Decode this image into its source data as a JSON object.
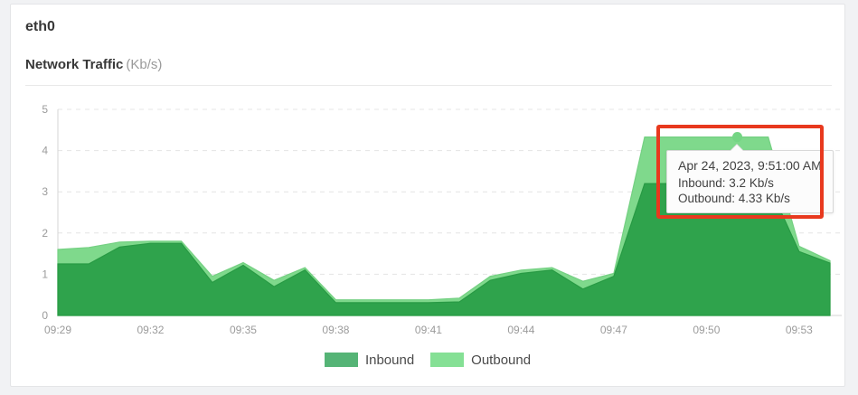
{
  "header": {
    "device": "eth0",
    "title": "Network Traffic",
    "unit": "(Kb/s)"
  },
  "chart_data": {
    "type": "area",
    "title": "Network Traffic",
    "xlabel": "",
    "ylabel": "Kb/s",
    "ylim": [
      0,
      5
    ],
    "y_ticks": [
      0,
      1,
      2,
      3,
      4,
      5
    ],
    "grid": "horizontal-dashed",
    "legend_position": "bottom",
    "x": [
      "09:29",
      "09:30",
      "09:31",
      "09:32",
      "09:33",
      "09:34",
      "09:35",
      "09:36",
      "09:37",
      "09:38",
      "09:39",
      "09:40",
      "09:41",
      "09:42",
      "09:43",
      "09:44",
      "09:45",
      "09:46",
      "09:47",
      "09:48",
      "09:49",
      "09:50",
      "09:51",
      "09:52",
      "09:53",
      "09:54"
    ],
    "x_tick_labels": [
      "09:29",
      "09:32",
      "09:35",
      "09:38",
      "09:41",
      "09:44",
      "09:47",
      "09:50",
      "09:53"
    ],
    "series": [
      {
        "name": "Inbound",
        "color": "#2fa34c",
        "edge_color": "#289a44",
        "legend_color": "#55b476",
        "values": [
          1.25,
          1.25,
          1.66,
          1.75,
          1.75,
          0.8,
          1.22,
          0.7,
          1.1,
          0.31,
          0.31,
          0.31,
          0.31,
          0.33,
          0.85,
          1.02,
          1.1,
          0.64,
          0.95,
          3.2,
          3.2,
          3.2,
          3.2,
          3.2,
          1.55,
          1.27
        ]
      },
      {
        "name": "Outbound",
        "color": "#7fd98c",
        "edge_color": "#74d082",
        "legend_color": "#85e095",
        "values": [
          1.6,
          1.65,
          1.78,
          1.8,
          1.8,
          0.95,
          1.28,
          0.85,
          1.16,
          0.38,
          0.38,
          0.38,
          0.38,
          0.42,
          0.95,
          1.1,
          1.16,
          0.83,
          1.02,
          4.33,
          4.33,
          4.33,
          4.33,
          4.33,
          1.68,
          1.33
        ]
      }
    ]
  },
  "tooltip": {
    "title": "Apr 24, 2023, 9:51:00 AM",
    "inbound_line": "Inbound: 3.2 Kb/s",
    "outbound_line": "Outbound: 4.33 Kb/s",
    "anchor_time": "09:51",
    "anchor_series": "Outbound",
    "anchor_value": 4.33
  },
  "annotation": {
    "type": "highlight-box",
    "color": "#e8391e"
  },
  "colors": {
    "page_bg": "#f1f2f4",
    "card_bg": "#ffffff",
    "card_border": "#e4e5e7",
    "grid_line": "#e4e4e4",
    "axis_line": "#d4d4d4",
    "tick_text": "#9b9b9b",
    "tooltip_bg": "#fcfcfc",
    "tooltip_border": "#d8d8d8",
    "tooltip_text": "#414141",
    "hover_dot": "#74d584"
  }
}
